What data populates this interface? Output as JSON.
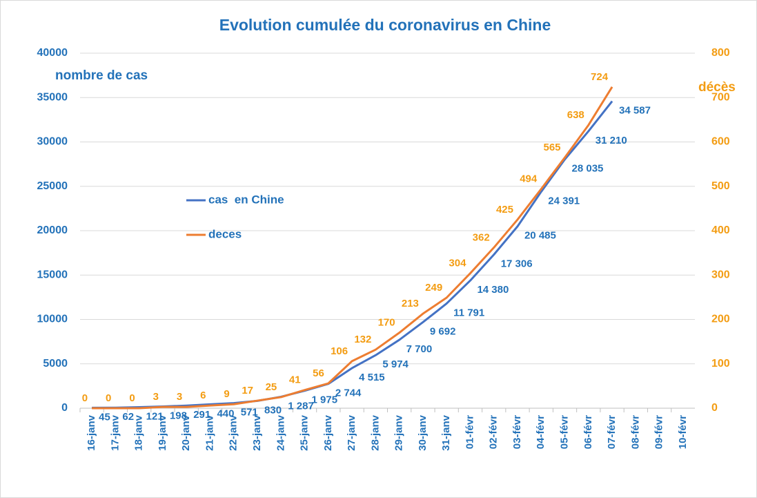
{
  "chart_data": {
    "type": "line",
    "title": "Evolution cumulée du coronavirus en Chine",
    "y_label": "nombre de cas",
    "y2_label": "décès",
    "categories": [
      "16-janv",
      "17-janv",
      "18-janv",
      "19-janv",
      "20-janv",
      "21-janv",
      "22-janv",
      "23-janv",
      "24-janv",
      "25-janv",
      "26-janv",
      "27-janv",
      "28-janv",
      "29-janv",
      "30-janv",
      "31-janv",
      "01-févr",
      "02-févr",
      "03-févr",
      "04-févr",
      "05-févr",
      "06-févr",
      "07-févr",
      "08-févr",
      "09-févr",
      "10-févr"
    ],
    "series": [
      {
        "name": "cas  en Chine",
        "color": "#4472c4",
        "label_color": "#2372b9",
        "values": [
          45,
          62,
          121,
          198,
          291,
          440,
          571,
          830,
          1287,
          1975,
          2744,
          4515,
          5974,
          7700,
          9692,
          11791,
          14380,
          17306,
          20485,
          24391,
          28035,
          31210,
          34587,
          null,
          null,
          null
        ],
        "value_labels": [
          "45",
          "62",
          "121",
          "198",
          "291",
          "440",
          "571",
          "830",
          "1 287",
          "1 975",
          "2 744",
          "4 515",
          "5 974",
          "7 700",
          "9 692",
          "11 791",
          "14 380",
          "17 306",
          "20 485",
          "24 391",
          "28 035",
          "31 210",
          "34 587",
          null,
          null,
          null
        ]
      },
      {
        "name": "deces",
        "color": "#ed7d31",
        "label_color": "#f39c12",
        "axis": "y2",
        "values": [
          0,
          0,
          0,
          3,
          3,
          6,
          9,
          17,
          25,
          41,
          56,
          106,
          132,
          170,
          213,
          249,
          304,
          362,
          425,
          494,
          565,
          638,
          724,
          null,
          null,
          null
        ]
      }
    ],
    "ylim": [
      0,
      40000
    ],
    "yticks": [
      0,
      5000,
      10000,
      15000,
      20000,
      25000,
      30000,
      35000,
      40000
    ],
    "y2lim": [
      0,
      800
    ],
    "y2ticks": [
      0,
      100,
      200,
      300,
      400,
      500,
      600,
      700,
      800
    ],
    "grid": true,
    "axis_label_color": "#2372b9",
    "y2_axis_color": "#f39c12"
  }
}
